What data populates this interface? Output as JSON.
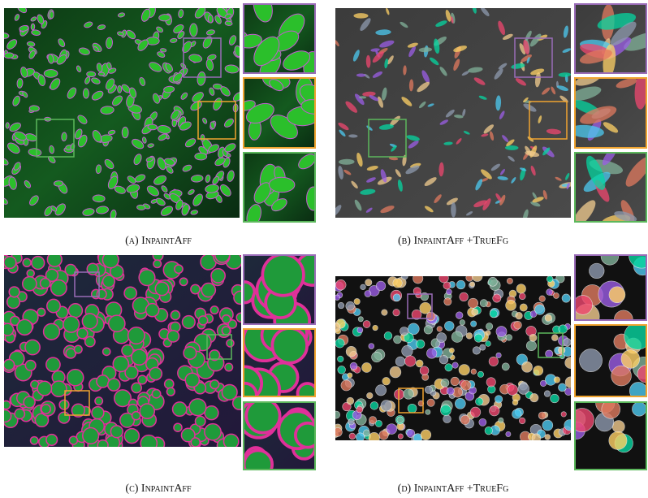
{
  "panels": [
    {
      "caption": "(a) InpaintAff"
    },
    {
      "caption": "(b) InpaintAff +TrueFg"
    },
    {
      "caption": "(c) InpaintAff"
    },
    {
      "caption": "(d) InpaintAff +TrueFg"
    }
  ]
}
